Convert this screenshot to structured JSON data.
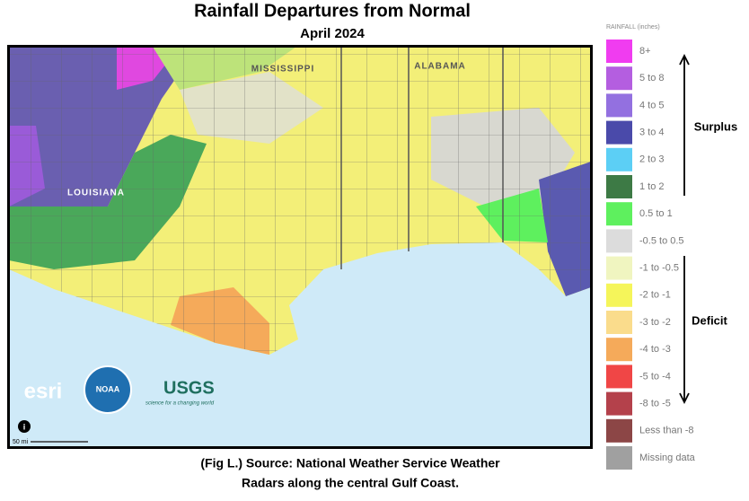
{
  "title": "Rainfall Departures from Normal",
  "subtitle": "April 2024",
  "legend": {
    "title": "RAINFALL (inches)",
    "items": [
      {
        "label": "8+",
        "color": "#f03cf0"
      },
      {
        "label": "5 to 8",
        "color": "#b45ee0"
      },
      {
        "label": "4 to 5",
        "color": "#9370e0"
      },
      {
        "label": "3 to 4",
        "color": "#4a4aaa"
      },
      {
        "label": "2 to 3",
        "color": "#5ccff5"
      },
      {
        "label": "1 to 2",
        "color": "#3d7a45"
      },
      {
        "label": "0.5 to 1",
        "color": "#5ef05e"
      },
      {
        "label": "-0.5 to 0.5",
        "color": "#dcdcdc"
      },
      {
        "label": "-1 to -0.5",
        "color": "#f0f5c0"
      },
      {
        "label": "-2 to -1",
        "color": "#f5f55a"
      },
      {
        "label": "-3 to -2",
        "color": "#fadc8c"
      },
      {
        "label": "-4 to -3",
        "color": "#f5aa5a"
      },
      {
        "label": "-5 to -4",
        "color": "#f04646"
      },
      {
        "label": "-8 to -5",
        "color": "#b4414b"
      },
      {
        "label": "Less than -8",
        "color": "#8c4646"
      },
      {
        "label": "Missing data",
        "color": "#a0a0a0"
      }
    ]
  },
  "annotations": {
    "surplus": "Surplus",
    "deficit": "Deficit"
  },
  "map": {
    "labels": [
      "MISSISSIPPI",
      "ALABAMA",
      "LOUISIANA"
    ],
    "scale": "50 mi",
    "info": "i",
    "logos": {
      "esri": "esri",
      "noaa": "NOAA",
      "usgs": "USGS",
      "usgs_tagline": "science for a changing world"
    }
  },
  "caption": [
    "(Fig L.) Source: National Weather Service Weather",
    "Radars along the central Gulf Coast."
  ]
}
